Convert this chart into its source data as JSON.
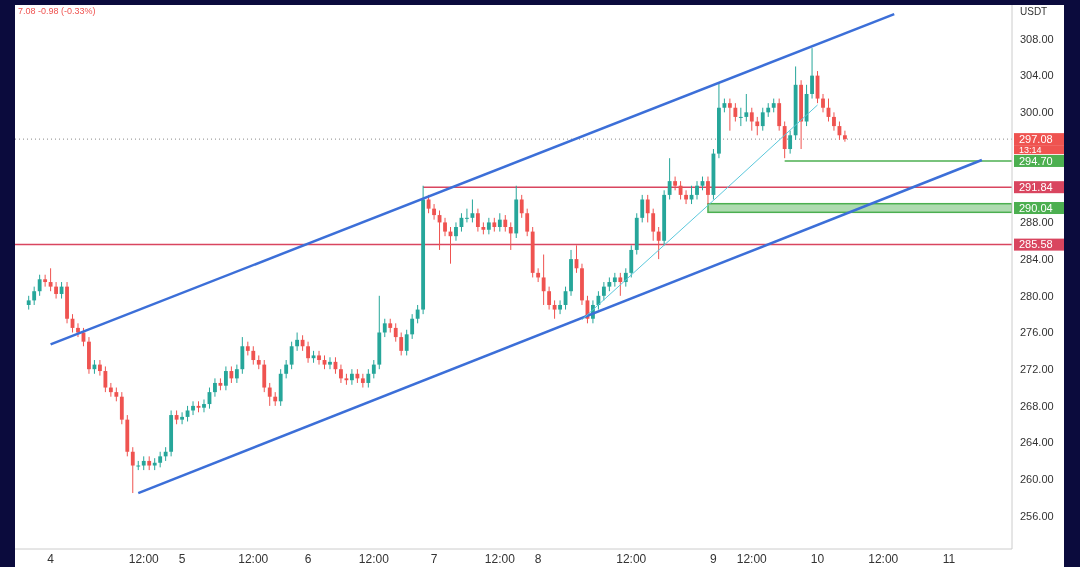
{
  "chart_data": {
    "type": "candlestick",
    "categories": [
      null,
      null,
      null,
      null,
      "4",
      null,
      null,
      null,
      null,
      null,
      null,
      null,
      null,
      null,
      null,
      null,
      null,
      null,
      null,
      null,
      null,
      "12:00",
      null,
      null,
      null,
      null,
      null,
      null,
      "5",
      null,
      null,
      null,
      null,
      null,
      null,
      null,
      null,
      null,
      null,
      null,
      null,
      "12:00",
      null,
      null,
      null,
      null,
      null,
      null,
      null,
      null,
      null,
      "6",
      null,
      null,
      null,
      null,
      null,
      null,
      null,
      null,
      null,
      null,
      null,
      "12:00",
      null,
      null,
      null,
      null,
      null,
      null,
      null,
      null,
      null,
      null,
      "7",
      null,
      null,
      null,
      null,
      null,
      null,
      null,
      null,
      null,
      null,
      null,
      "12:00",
      null,
      null,
      null,
      null,
      null,
      null,
      "8",
      null,
      null,
      null,
      null,
      null,
      null,
      null,
      null,
      null,
      null,
      null,
      null,
      null,
      null,
      null,
      null,
      "12:00",
      null,
      null,
      null,
      null,
      null,
      null,
      null,
      null,
      null,
      null,
      null,
      null,
      null,
      null,
      "9",
      null,
      null,
      null,
      null,
      null,
      null,
      "12:00",
      null,
      null,
      null,
      null,
      null,
      null,
      null,
      null,
      null,
      null,
      null,
      "10",
      null,
      null,
      null,
      null,
      null,
      null,
      null,
      null,
      null,
      null,
      null,
      "12:00",
      null,
      null,
      null,
      null,
      null,
      null,
      null,
      null,
      null,
      null,
      null,
      "11",
      null,
      null,
      null,
      null,
      null,
      null,
      null,
      null,
      null,
      null,
      null
    ],
    "ohlc": [
      [
        279.0,
        280.0,
        278.5,
        279.5
      ],
      [
        279.5,
        281.0,
        279.0,
        280.5
      ],
      [
        280.5,
        282.3,
        280.0,
        281.8
      ],
      [
        281.8,
        282.3,
        281.0,
        281.5
      ],
      [
        281.5,
        283.0,
        280.5,
        281.0
      ],
      [
        281.0,
        281.5,
        279.7,
        280.2
      ],
      [
        280.2,
        281.5,
        279.7,
        281.0
      ],
      [
        281.0,
        281.5,
        277.0,
        277.5
      ],
      [
        277.5,
        278.0,
        276.0,
        276.5
      ],
      [
        276.5,
        277.0,
        275.5,
        276.0
      ],
      [
        276.0,
        276.5,
        274.5,
        275.0
      ],
      [
        275.0,
        275.5,
        271.5,
        272.0
      ],
      [
        272.0,
        273.0,
        271.5,
        272.5
      ],
      [
        272.5,
        273.0,
        271.3,
        271.8
      ],
      [
        271.8,
        272.3,
        269.5,
        270.0
      ],
      [
        270.0,
        270.5,
        269.0,
        269.5
      ],
      [
        269.5,
        270.0,
        268.5,
        269.0
      ],
      [
        269.0,
        269.5,
        266.0,
        266.5
      ],
      [
        266.5,
        267.0,
        262.5,
        263.0
      ],
      [
        263.0,
        263.5,
        258.5,
        261.5
      ],
      [
        261.5,
        262.0,
        261.0,
        261.5
      ],
      [
        261.5,
        262.5,
        261.0,
        262.0
      ],
      [
        262.0,
        262.5,
        261.0,
        261.5
      ],
      [
        261.5,
        262.3,
        261.0,
        261.8
      ],
      [
        261.8,
        263.0,
        261.3,
        262.5
      ],
      [
        262.5,
        263.5,
        262.0,
        263.0
      ],
      [
        263.0,
        267.5,
        262.5,
        267.0
      ],
      [
        267.0,
        267.5,
        266.0,
        266.5
      ],
      [
        266.5,
        267.3,
        266.0,
        266.8
      ],
      [
        266.8,
        268.0,
        266.3,
        267.5
      ],
      [
        267.5,
        268.5,
        267.0,
        268.0
      ],
      [
        268.0,
        268.5,
        267.3,
        267.8
      ],
      [
        267.8,
        268.7,
        267.3,
        268.2
      ],
      [
        268.2,
        270.0,
        267.7,
        269.5
      ],
      [
        269.5,
        271.0,
        269.0,
        270.5
      ],
      [
        270.5,
        271.0,
        269.7,
        270.2
      ],
      [
        270.2,
        272.3,
        269.7,
        271.8
      ],
      [
        271.8,
        272.3,
        270.5,
        271.0
      ],
      [
        271.0,
        272.5,
        270.5,
        272.0
      ],
      [
        272.0,
        275.5,
        271.5,
        274.5
      ],
      [
        274.5,
        275.0,
        273.5,
        274.0
      ],
      [
        274.0,
        274.5,
        272.5,
        273.0
      ],
      [
        273.0,
        273.5,
        272.0,
        272.5
      ],
      [
        272.5,
        273.0,
        269.5,
        270.0
      ],
      [
        270.0,
        270.5,
        268.0,
        269.0
      ],
      [
        269.0,
        269.5,
        268.0,
        268.5
      ],
      [
        268.5,
        272.0,
        268.0,
        271.5
      ],
      [
        271.5,
        273.0,
        271.0,
        272.5
      ],
      [
        272.5,
        275.0,
        272.0,
        274.5
      ],
      [
        274.5,
        276.0,
        274.0,
        275.2
      ],
      [
        275.2,
        275.7,
        274.0,
        274.5
      ],
      [
        274.5,
        275.0,
        272.7,
        273.2
      ],
      [
        273.2,
        274.0,
        272.7,
        273.5
      ],
      [
        273.5,
        274.0,
        272.5,
        273.0
      ],
      [
        273.0,
        273.5,
        272.0,
        272.5
      ],
      [
        272.5,
        273.3,
        272.0,
        272.8
      ],
      [
        272.8,
        273.3,
        271.5,
        272.0
      ],
      [
        272.0,
        272.5,
        270.5,
        271.0
      ],
      [
        271.0,
        271.5,
        270.3,
        270.8
      ],
      [
        270.8,
        272.0,
        270.3,
        271.5
      ],
      [
        271.5,
        272.0,
        270.5,
        271.0
      ],
      [
        271.0,
        271.5,
        270.0,
        270.5
      ],
      [
        270.5,
        272.0,
        270.0,
        271.5
      ],
      [
        271.5,
        273.0,
        271.0,
        272.5
      ],
      [
        272.5,
        280.0,
        272.0,
        276.0
      ],
      [
        276.0,
        277.5,
        275.5,
        277.0
      ],
      [
        277.0,
        277.5,
        276.0,
        276.5
      ],
      [
        276.5,
        277.0,
        275.0,
        275.5
      ],
      [
        275.5,
        276.0,
        273.5,
        274.0
      ],
      [
        274.0,
        276.3,
        273.5,
        275.8
      ],
      [
        275.8,
        278.0,
        275.3,
        277.5
      ],
      [
        277.5,
        279.0,
        277.0,
        278.5
      ],
      [
        278.5,
        292.0,
        278.0,
        290.5
      ],
      [
        290.5,
        291.0,
        289.0,
        289.5
      ],
      [
        289.5,
        290.0,
        288.3,
        288.8
      ],
      [
        288.8,
        289.3,
        285.0,
        288.0
      ],
      [
        288.0,
        288.5,
        286.5,
        287.0
      ],
      [
        287.0,
        287.5,
        283.5,
        286.5
      ],
      [
        286.5,
        288.0,
        286.0,
        287.5
      ],
      [
        287.5,
        289.0,
        287.0,
        288.5
      ],
      [
        288.5,
        289.5,
        288.0,
        288.5
      ],
      [
        288.5,
        290.5,
        288.0,
        289.0
      ],
      [
        289.0,
        289.5,
        287.0,
        287.5
      ],
      [
        287.5,
        288.0,
        286.7,
        287.2
      ],
      [
        287.2,
        288.5,
        286.7,
        288.0
      ],
      [
        288.0,
        288.5,
        287.0,
        287.5
      ],
      [
        287.5,
        289.0,
        287.0,
        288.3
      ],
      [
        288.3,
        288.8,
        287.0,
        287.5
      ],
      [
        287.5,
        288.0,
        285.0,
        286.8
      ],
      [
        286.8,
        292.0,
        286.3,
        290.5
      ],
      [
        290.5,
        291.0,
        288.5,
        289.0
      ],
      [
        289.0,
        289.5,
        286.5,
        287.0
      ],
      [
        287.0,
        287.5,
        282.0,
        282.5
      ],
      [
        282.5,
        283.0,
        281.5,
        282.0
      ],
      [
        282.0,
        284.5,
        279.0,
        280.5
      ],
      [
        280.5,
        281.0,
        278.5,
        279.0
      ],
      [
        279.0,
        279.5,
        277.5,
        278.5
      ],
      [
        278.5,
        279.5,
        278.0,
        279.0
      ],
      [
        279.0,
        281.0,
        278.5,
        280.5
      ],
      [
        280.5,
        285.0,
        280.0,
        284.0
      ],
      [
        284.0,
        285.5,
        282.5,
        283.0
      ],
      [
        283.0,
        283.5,
        279.0,
        279.5
      ],
      [
        279.5,
        280.0,
        277.0,
        277.5
      ],
      [
        277.5,
        279.5,
        277.0,
        279.0
      ],
      [
        279.0,
        280.5,
        278.5,
        280.0
      ],
      [
        280.0,
        281.5,
        279.5,
        281.0
      ],
      [
        281.0,
        282.0,
        280.5,
        281.5
      ],
      [
        281.5,
        282.5,
        281.0,
        282.0
      ],
      [
        282.0,
        282.5,
        280.0,
        281.5
      ],
      [
        281.5,
        283.0,
        281.0,
        282.5
      ],
      [
        282.5,
        285.5,
        282.0,
        285.0
      ],
      [
        285.0,
        289.0,
        284.5,
        288.5
      ],
      [
        288.5,
        291.0,
        288.0,
        290.5
      ],
      [
        290.5,
        291.0,
        288.0,
        289.0
      ],
      [
        289.0,
        289.5,
        286.0,
        287.0
      ],
      [
        287.0,
        287.5,
        284.0,
        286.0
      ],
      [
        286.0,
        291.5,
        285.5,
        291.0
      ],
      [
        291.0,
        295.0,
        290.5,
        292.5
      ],
      [
        292.5,
        293.0,
        291.5,
        292.0
      ],
      [
        292.0,
        292.5,
        290.5,
        291.0
      ],
      [
        291.0,
        291.5,
        290.0,
        290.5
      ],
      [
        290.5,
        292.0,
        290.0,
        291.0
      ],
      [
        291.0,
        292.5,
        290.5,
        292.0
      ],
      [
        292.0,
        293.0,
        291.5,
        292.5
      ],
      [
        292.5,
        293.0,
        290.0,
        291.0
      ],
      [
        291.0,
        296.0,
        290.5,
        295.5
      ],
      [
        295.5,
        303.3,
        295.0,
        300.5
      ],
      [
        300.5,
        301.5,
        300.0,
        301.0
      ],
      [
        301.0,
        301.5,
        298.0,
        300.5
      ],
      [
        300.5,
        301.0,
        299.0,
        299.5
      ],
      [
        299.5,
        300.5,
        298.5,
        299.5
      ],
      [
        299.5,
        302.0,
        299.0,
        300.0
      ],
      [
        300.0,
        300.5,
        298.0,
        299.0
      ],
      [
        299.0,
        299.5,
        297.5,
        298.5
      ],
      [
        298.5,
        300.5,
        298.0,
        300.0
      ],
      [
        300.0,
        301.0,
        299.5,
        300.5
      ],
      [
        300.5,
        301.5,
        300.0,
        301.0
      ],
      [
        301.0,
        301.5,
        298.0,
        298.5
      ],
      [
        298.5,
        299.0,
        295.0,
        296.0
      ],
      [
        296.0,
        298.0,
        295.5,
        297.5
      ],
      [
        297.5,
        305.0,
        297.0,
        303.0
      ],
      [
        303.0,
        303.5,
        296.0,
        299.0
      ],
      [
        299.0,
        303.0,
        298.5,
        302.0
      ],
      [
        302.0,
        307.0,
        301.5,
        304.0
      ],
      [
        304.0,
        304.5,
        301.0,
        301.5
      ],
      [
        301.5,
        302.0,
        300.0,
        300.5
      ],
      [
        300.5,
        301.5,
        299.0,
        299.5
      ],
      [
        299.5,
        300.0,
        298.0,
        298.5
      ],
      [
        298.5,
        299.0,
        297.0,
        297.5
      ],
      [
        297.5,
        298.0,
        296.8,
        297.08
      ],
      null,
      null,
      null,
      null,
      null,
      null,
      null,
      null,
      null,
      null,
      null,
      null,
      null,
      null,
      null,
      null,
      null,
      null,
      null,
      null,
      null,
      null,
      null,
      null,
      null,
      null,
      null,
      null,
      null,
      null
    ],
    "series": [
      {
        "type": "line",
        "color": "#3c6fd8",
        "values": [
          null,
          null,
          null,
          null,
          274.7,
          null,
          null,
          null,
          null,
          null,
          null,
          null,
          null,
          null,
          null,
          null,
          null,
          null,
          null,
          null,
          null,
          null,
          null,
          null,
          null,
          null,
          null,
          null,
          null,
          null,
          null,
          null,
          null,
          null,
          null,
          null,
          null,
          null,
          null,
          null,
          null,
          null,
          null,
          null,
          null,
          null,
          null,
          null,
          null,
          null,
          null,
          null,
          null,
          null,
          null,
          null,
          null,
          null,
          null,
          null,
          null,
          null,
          null,
          null,
          null,
          null,
          null,
          null,
          null,
          null,
          null,
          null,
          null,
          null,
          null,
          null,
          null,
          null,
          null,
          null,
          null,
          null,
          null,
          null,
          null,
          null,
          null,
          null,
          null,
          null,
          null,
          null,
          null,
          null,
          null,
          null,
          null,
          null,
          null,
          null,
          null,
          null,
          null,
          null,
          null,
          null,
          null,
          null,
          null,
          null,
          null,
          null,
          null,
          null,
          null,
          null,
          null,
          null,
          null,
          null,
          null,
          null,
          null,
          null,
          null,
          null,
          null,
          null,
          null,
          null,
          null,
          null,
          null,
          null,
          null,
          null,
          null,
          null,
          null,
          null,
          null,
          null,
          null,
          null,
          null,
          null,
          null,
          null,
          null,
          null,
          null,
          null,
          null,
          null,
          null,
          null,
          null,
          null,
          310.7,
          null,
          null,
          null,
          null,
          null,
          null,
          null,
          null,
          null,
          null,
          null,
          null,
          null,
          null,
          null,
          null,
          null,
          null,
          null,
          null,
          null
        ]
      },
      {
        "type": "line",
        "color": "#3c6fd8",
        "values": [
          null,
          null,
          null,
          null,
          null,
          null,
          null,
          null,
          null,
          null,
          null,
          null,
          null,
          null,
          null,
          null,
          null,
          null,
          null,
          null,
          258.5,
          null,
          null,
          null,
          null,
          null,
          null,
          null,
          null,
          null,
          null,
          null,
          null,
          null,
          null,
          null,
          null,
          null,
          null,
          null,
          null,
          null,
          null,
          null,
          null,
          null,
          null,
          null,
          null,
          null,
          null,
          null,
          null,
          null,
          null,
          null,
          null,
          null,
          null,
          null,
          null,
          null,
          null,
          null,
          null,
          null,
          null,
          null,
          null,
          null,
          null,
          null,
          null,
          null,
          null,
          null,
          null,
          null,
          null,
          null,
          null,
          null,
          null,
          null,
          null,
          null,
          null,
          null,
          null,
          null,
          null,
          null,
          null,
          null,
          null,
          null,
          null,
          null,
          null,
          null,
          null,
          null,
          null,
          null,
          null,
          null,
          null,
          null,
          null,
          null,
          null,
          null,
          null,
          null,
          null,
          null,
          null,
          null,
          null,
          null,
          null,
          null,
          null,
          null,
          null,
          null,
          null,
          null,
          null,
          null,
          null,
          null,
          null,
          null,
          null,
          null,
          null,
          null,
          null,
          null,
          null,
          null,
          null,
          null,
          null,
          null,
          null,
          null,
          null,
          null,
          null,
          null,
          null,
          null,
          null,
          null,
          null,
          null,
          null,
          null,
          null,
          null,
          null,
          null,
          null,
          null,
          null,
          null,
          null,
          null,
          null,
          null,
          null,
          null,
          294.8,
          null,
          null,
          null,
          null,
          null
        ]
      },
      {
        "type": "line",
        "color": "#5bc8dc",
        "values": [
          null,
          null,
          null,
          null,
          null,
          null,
          null,
          null,
          null,
          null,
          null,
          null,
          null,
          null,
          null,
          null,
          null,
          null,
          null,
          null,
          null,
          null,
          null,
          null,
          null,
          null,
          null,
          null,
          null,
          null,
          null,
          null,
          null,
          null,
          null,
          null,
          null,
          null,
          null,
          null,
          null,
          null,
          null,
          null,
          null,
          null,
          null,
          null,
          null,
          null,
          null,
          null,
          null,
          null,
          null,
          null,
          null,
          null,
          null,
          null,
          null,
          null,
          null,
          null,
          null,
          null,
          null,
          null,
          null,
          null,
          null,
          null,
          null,
          null,
          null,
          null,
          null,
          null,
          null,
          null,
          null,
          null,
          null,
          null,
          null,
          null,
          null,
          null,
          null,
          null,
          null,
          null,
          null,
          null,
          null,
          null,
          null,
          null,
          null,
          null,
          null,
          277.4,
          null,
          null,
          null,
          null,
          null,
          null,
          null,
          null,
          null,
          null,
          null,
          null,
          null,
          null,
          null,
          null,
          null,
          null,
          null,
          null,
          null,
          null,
          null,
          290.4,
          null,
          null,
          null,
          null,
          null,
          null,
          null,
          null,
          null,
          null,
          null,
          null,
          null,
          null,
          null,
          null,
          null,
          null,
          300.8,
          null,
          null,
          null,
          null,
          null,
          null,
          null,
          null,
          null,
          null,
          null,
          null,
          null,
          null,
          null,
          null,
          null,
          null,
          null,
          null,
          null,
          null,
          null,
          null,
          null,
          null,
          null,
          null,
          null,
          null,
          null,
          null,
          null,
          null,
          null
        ]
      }
    ],
    "ylim": [
      252.4,
      311.7
    ],
    "yticks": [
      {
        "value": 256,
        "label": "256.00"
      },
      {
        "value": 260,
        "label": "260.00"
      },
      {
        "value": 264,
        "label": "264.00"
      },
      {
        "value": 268,
        "label": "268.00"
      },
      {
        "value": 272,
        "label": "272.00"
      },
      {
        "value": 276,
        "label": "276.00"
      },
      {
        "value": 280,
        "label": "280.00"
      },
      {
        "value": 284,
        "label": "284.00"
      },
      {
        "value": 288,
        "label": "288.00"
      },
      {
        "value": 300,
        "label": "300.00"
      },
      {
        "value": 304,
        "label": "304.00"
      },
      {
        "value": 308,
        "label": "308.00"
      }
    ],
    "ref_lines": [
      {
        "axis": "y",
        "value": 297.08,
        "label": "297.08",
        "color": "#888888",
        "line_style": "dotted"
      },
      {
        "axis": "y",
        "value": 294.7,
        "label": "294.70",
        "color": "#4caf50",
        "line_style": "solid"
      },
      {
        "axis": "y",
        "value": 291.84,
        "label": "291.84",
        "color": "#d9455f",
        "line_style": "solid"
      },
      {
        "axis": "y",
        "value": 285.58,
        "label": "285.58",
        "color": "#d9455f",
        "line_style": "solid"
      }
    ],
    "bands": [
      {
        "axis": "y",
        "from": 289.1,
        "to": 290.04,
        "label": "290.04",
        "color": "#4caf50"
      }
    ],
    "annotations": [
      "7.08  -0.98 (-0.33%)",
      "USDT",
      "13:14"
    ],
    "grid": false
  }
}
